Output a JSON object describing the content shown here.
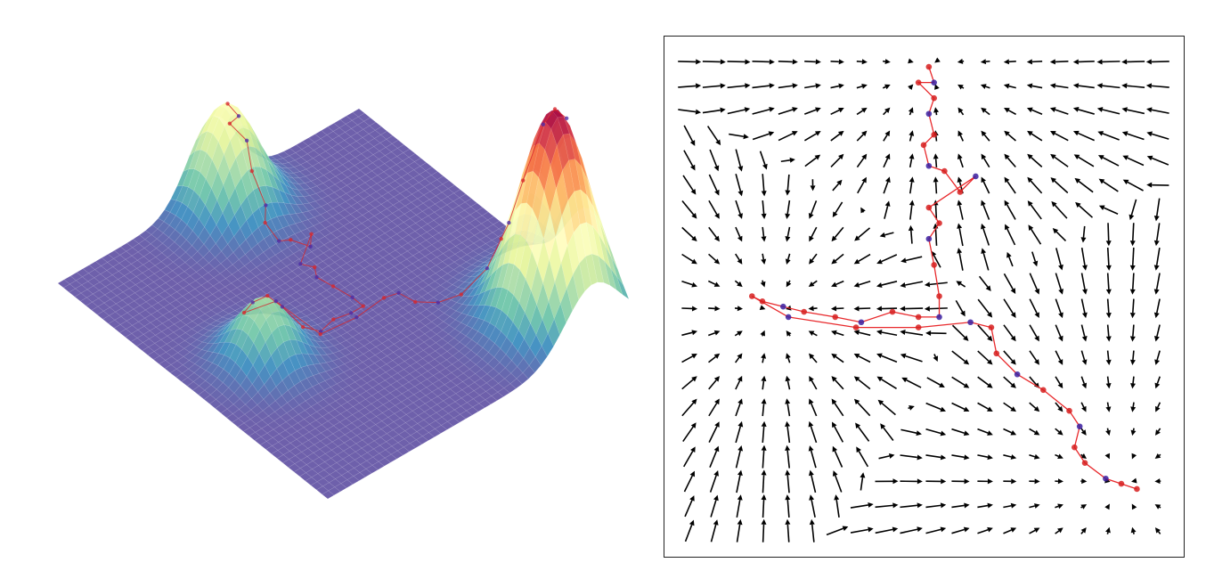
{
  "chart_data": [
    {
      "type": "surface",
      "peaks": [
        {
          "x": 0.51,
          "y": 0.94,
          "height": 0.5,
          "spread": 0.08
        },
        {
          "x": 0.21,
          "y": 0.47,
          "height": 0.3,
          "spread": 0.07
        },
        {
          "x": 0.88,
          "y": 0.14,
          "height": 1.0,
          "spread": 0.09
        }
      ],
      "trajectory": {
        "color": "#d7262b",
        "marker_color": "#4a2aa8",
        "x": [
          0.51,
          0.52,
          0.49,
          0.52,
          0.51,
          0.52,
          0.5,
          0.51,
          0.54,
          0.57,
          0.6,
          0.51,
          0.53,
          0.51,
          0.52,
          0.53,
          0.53,
          0.49,
          0.44,
          0.38,
          0.33,
          0.27,
          0.23,
          0.19,
          0.17,
          0.24,
          0.37,
          0.49,
          0.59,
          0.63,
          0.64,
          0.68,
          0.73,
          0.78,
          0.8,
          0.79,
          0.81,
          0.85,
          0.88,
          0.91
        ],
        "y": [
          0.94,
          0.91,
          0.91,
          0.88,
          0.85,
          0.81,
          0.79,
          0.75,
          0.74,
          0.7,
          0.73,
          0.67,
          0.64,
          0.61,
          0.56,
          0.5,
          0.46,
          0.46,
          0.47,
          0.45,
          0.46,
          0.47,
          0.48,
          0.49,
          0.5,
          0.46,
          0.44,
          0.44,
          0.45,
          0.44,
          0.39,
          0.35,
          0.32,
          0.28,
          0.25,
          0.21,
          0.18,
          0.15,
          0.14,
          0.13
        ]
      }
    },
    {
      "type": "quiver",
      "xlim": [
        0,
        1
      ],
      "ylim": [
        0,
        1
      ],
      "peaks": [
        {
          "x": 0.51,
          "y": 0.94,
          "height": 0.5,
          "spread": 0.08
        },
        {
          "x": 0.21,
          "y": 0.47,
          "height": 0.3,
          "spread": 0.07
        },
        {
          "x": 0.88,
          "y": 0.14,
          "height": 1.0,
          "spread": 0.09
        }
      ],
      "arrow_color": "#000000",
      "trajectory": {
        "color": "#e8282b",
        "marker_color": "#d61f1f",
        "x": [
          0.51,
          0.52,
          0.49,
          0.52,
          0.51,
          0.52,
          0.5,
          0.51,
          0.54,
          0.57,
          0.6,
          0.51,
          0.53,
          0.51,
          0.52,
          0.53,
          0.53,
          0.49,
          0.44,
          0.38,
          0.33,
          0.27,
          0.23,
          0.19,
          0.17,
          0.24,
          0.37,
          0.49,
          0.59,
          0.63,
          0.64,
          0.68,
          0.73,
          0.78,
          0.8,
          0.79,
          0.81,
          0.85,
          0.88,
          0.91
        ],
        "y": [
          0.94,
          0.91,
          0.91,
          0.88,
          0.85,
          0.81,
          0.79,
          0.75,
          0.74,
          0.7,
          0.73,
          0.67,
          0.64,
          0.61,
          0.56,
          0.5,
          0.46,
          0.46,
          0.47,
          0.45,
          0.46,
          0.47,
          0.48,
          0.49,
          0.5,
          0.46,
          0.44,
          0.44,
          0.45,
          0.44,
          0.39,
          0.35,
          0.32,
          0.28,
          0.25,
          0.21,
          0.18,
          0.15,
          0.14,
          0.13
        ]
      }
    }
  ]
}
